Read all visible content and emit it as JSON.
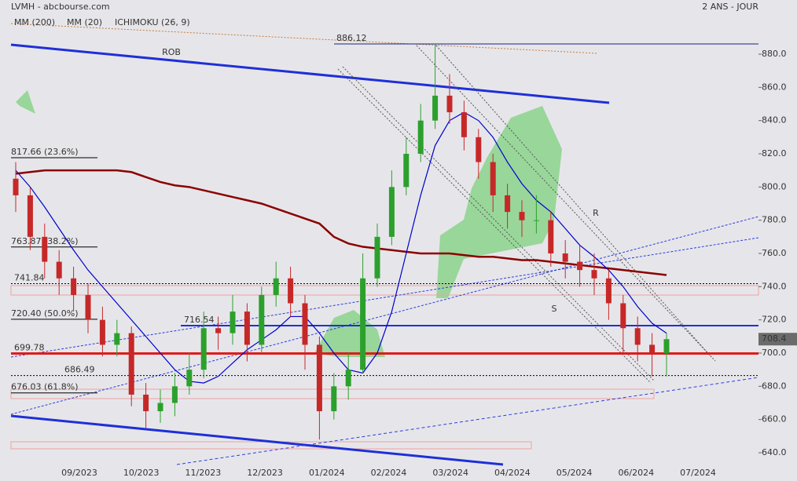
{
  "chart_data": {
    "type": "candlestick",
    "title": "LVMH - abcbourse.com",
    "subtitle": "2 ANS - JOUR",
    "categories": [
      null,
      null,
      null,
      null,
      null,
      null,
      null,
      null,
      null,
      null,
      null,
      null,
      null,
      null,
      null,
      null,
      null,
      null,
      null,
      null,
      null,
      null,
      null,
      null,
      null,
      null,
      null,
      null,
      null,
      null,
      null,
      null,
      null,
      null,
      null,
      null,
      null,
      null,
      null,
      null,
      null,
      null,
      null,
      null,
      null,
      null
    ],
    "open": [
      805,
      795,
      770,
      755,
      745,
      735,
      720,
      705,
      712,
      675,
      665,
      670,
      680,
      690,
      715,
      712,
      725,
      705,
      735,
      745,
      730,
      705,
      665,
      680,
      690,
      745,
      770,
      800,
      820,
      840,
      855,
      845,
      830,
      815,
      795,
      785,
      780,
      780,
      760,
      755,
      750,
      745,
      730,
      715,
      705,
      700
    ],
    "high": [
      815,
      800,
      778,
      762,
      752,
      742,
      728,
      720,
      716,
      682,
      678,
      688,
      700,
      725,
      722,
      735,
      730,
      740,
      755,
      752,
      735,
      710,
      688,
      700,
      760,
      778,
      810,
      830,
      850,
      886.12,
      868,
      852,
      835,
      820,
      802,
      792,
      795,
      785,
      768,
      765,
      760,
      750,
      735,
      722,
      712,
      712
    ],
    "low": [
      785,
      762,
      745,
      735,
      725,
      712,
      698,
      698,
      668,
      655,
      658,
      662,
      675,
      685,
      702,
      705,
      695,
      700,
      728,
      722,
      690,
      648,
      660,
      672,
      688,
      740,
      765,
      795,
      815,
      835,
      838,
      822,
      805,
      785,
      775,
      770,
      772,
      752,
      745,
      740,
      735,
      720,
      700,
      695,
      686,
      686
    ],
    "close": [
      795,
      770,
      755,
      745,
      735,
      720,
      705,
      712,
      675,
      665,
      670,
      680,
      690,
      715,
      712,
      725,
      705,
      735,
      745,
      730,
      705,
      665,
      680,
      690,
      745,
      770,
      800,
      820,
      840,
      855,
      845,
      830,
      815,
      795,
      785,
      780,
      780,
      760,
      755,
      750,
      745,
      730,
      715,
      705,
      700,
      708.4
    ],
    "up_color": "#2ca02c",
    "down_color": "#c62828",
    "series": [
      {
        "name": "MM (200)",
        "color": "#8b0000",
        "values": [
          808,
          809,
          810,
          810,
          810,
          810,
          810,
          810,
          809,
          806,
          803,
          801,
          800,
          798,
          796,
          794,
          792,
          790,
          787,
          784,
          781,
          778,
          770,
          766,
          764,
          763,
          762,
          761,
          760,
          760,
          760,
          759,
          758,
          758,
          757,
          756,
          756,
          755,
          754,
          753,
          752,
          751,
          750,
          749,
          748,
          747
        ]
      },
      {
        "name": "MM (20)",
        "color": "#0000cd",
        "values": [
          810,
          800,
          788,
          775,
          762,
          750,
          740,
          730,
          720,
          710,
          700,
          690,
          683,
          682,
          686,
          694,
          702,
          708,
          714,
          722,
          722,
          712,
          700,
          690,
          688,
          700,
          725,
          760,
          795,
          825,
          840,
          845,
          840,
          830,
          815,
          802,
          792,
          785,
          775,
          765,
          758,
          750,
          740,
          728,
          718,
          712
        ]
      }
    ],
    "ichimoku": {
      "name": "ICHIMOKU (26, 9)",
      "color": "#1f6fd1"
    },
    "x_labels": [
      "09/2023",
      "10/2023",
      "11/2023",
      "12/2023",
      "01/2024",
      "02/2024",
      "03/2024",
      "04/2024",
      "05/2024",
      "06/2024",
      "07/2024"
    ],
    "ylim": [
      640,
      880
    ],
    "yticks": [
      {
        "value": 640,
        "label": "640.0"
      },
      {
        "value": 660,
        "label": "660.0"
      },
      {
        "value": 680,
        "label": "680.0"
      },
      {
        "value": 700,
        "label": "700.0"
      },
      {
        "value": 720,
        "label": "720.0"
      },
      {
        "value": 740,
        "label": "740.0"
      },
      {
        "value": 760,
        "label": "760.0"
      },
      {
        "value": 780,
        "label": "780.0"
      },
      {
        "value": 800,
        "label": "800.0"
      },
      {
        "value": 820,
        "label": "820.0"
      },
      {
        "value": 840,
        "label": "840.0"
      },
      {
        "value": 860,
        "label": "860.0"
      },
      {
        "value": 880,
        "label": "880.0"
      }
    ],
    "levels": [
      886.12,
      {
        "value": 817.66,
        "label": "817.66  (23.6%)"
      },
      {
        "value": 763.87,
        "label": "763.87  (38.2%)"
      },
      741.84,
      {
        "value": 720.4,
        "label": "720.40  (50.0%)"
      },
      716.54,
      699.78,
      686.49,
      {
        "value": 676.03,
        "label": "676.03  (61.8%)"
      }
    ],
    "annotations": [
      "ROB",
      "R",
      "S"
    ],
    "last_price": 708.4
  }
}
